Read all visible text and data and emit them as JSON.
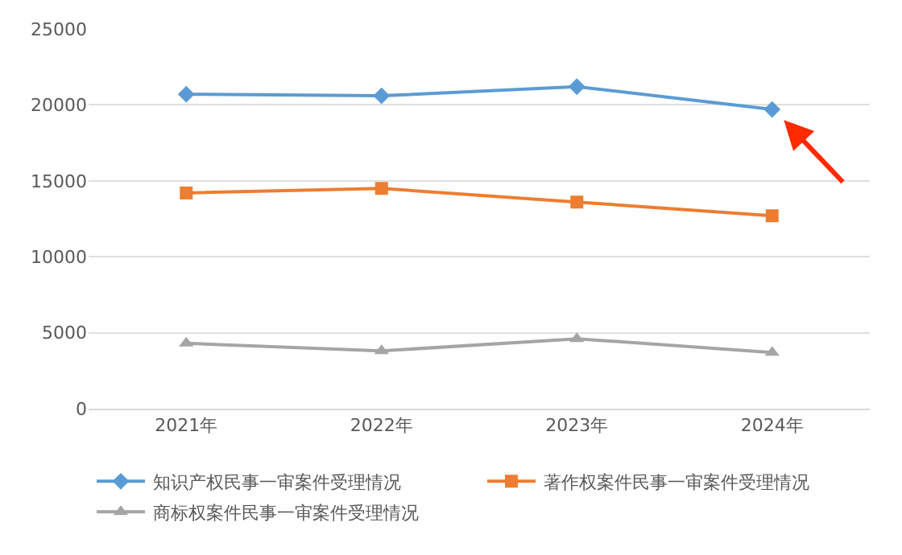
{
  "chart_data": {
    "type": "line",
    "categories": [
      "2021年",
      "2022年",
      "2023年",
      "2024年"
    ],
    "series": [
      {
        "name": "知识产权民事一审案件受理情况",
        "color": "#5b9bd5",
        "marker": "diamond",
        "values": [
          20700,
          20600,
          21200,
          19700
        ]
      },
      {
        "name": "著作权案件民事一审案件受理情况",
        "color": "#ed7d31",
        "marker": "square",
        "values": [
          14200,
          14500,
          13600,
          12700
        ]
      },
      {
        "name": "商标权案件民事一审案件受理情况",
        "color": "#a5a5a5",
        "marker": "triangle",
        "values": [
          4300,
          3800,
          4600,
          3700
        ]
      }
    ],
    "ylim": [
      0,
      25000
    ],
    "yticks": [
      0,
      5000,
      10000,
      15000,
      20000,
      25000
    ],
    "grid": "y",
    "legend": "bottom",
    "line_style": "solid"
  }
}
